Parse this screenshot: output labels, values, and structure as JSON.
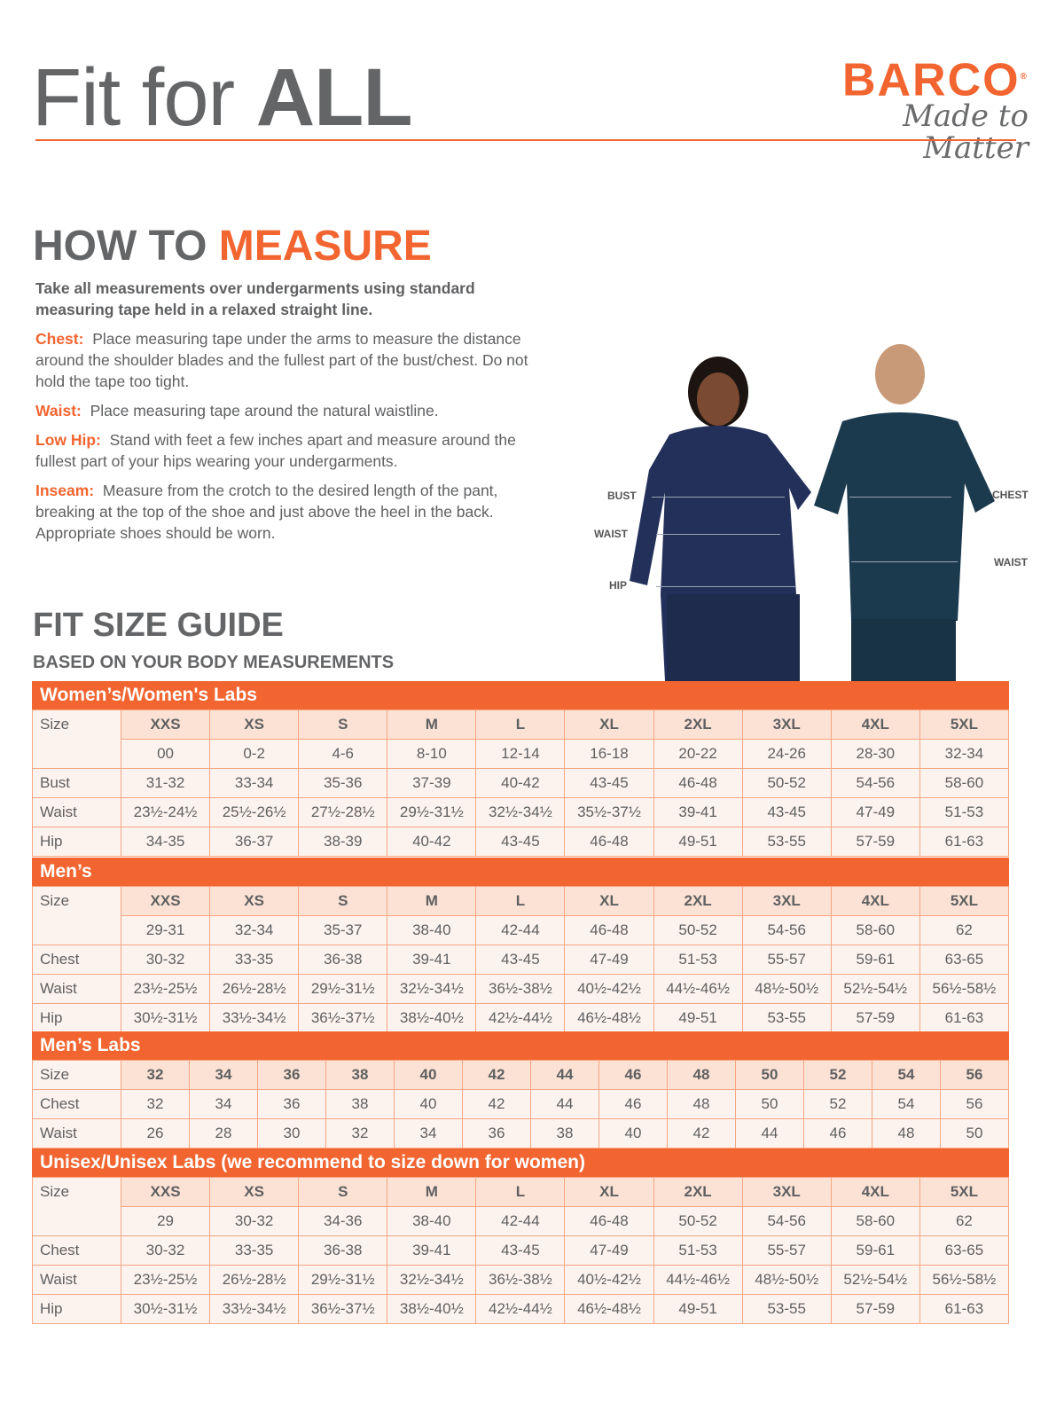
{
  "header": {
    "title_light": "Fit for ",
    "title_bold": "ALL",
    "logo_brand": "BARCO",
    "logo_registered": "®",
    "logo_tagline": "Made to Matter"
  },
  "how_to": {
    "title_gray": "HOW TO ",
    "title_orange": "MEASURE",
    "lead": "Take all measurements over undergarments using standard measuring tape held in a relaxed straight line.",
    "items": [
      {
        "key": "Chest:",
        "text": "Place measuring tape under the arms to measure the distance around the shoulder blades and the fullest part of the bust/chest. Do not hold the tape too tight."
      },
      {
        "key": "Waist:",
        "text": "Place measuring tape around the natural waistline."
      },
      {
        "key": "Low Hip:",
        "text": "Stand with feet a few inches apart and measure around the fullest part of your hips wearing your undergarments."
      },
      {
        "key": "Inseam:",
        "text": "Measure from the crotch to the desired length of the pant, breaking at the top of the shoe and just above the heel in the back. Appropriate shoes should be worn."
      }
    ]
  },
  "figure_labels": {
    "bust": "BUST",
    "waist_w": "WAIST",
    "hip": "HIP",
    "chest": "CHEST",
    "waist_m": "WAIST"
  },
  "guide": {
    "title": "FIT SIZE GUIDE",
    "subtitle": "BASED ON YOUR BODY MEASUREMENTS"
  },
  "colors": {
    "accent": "#f26530",
    "text": "#5f6062",
    "cell": "#fdf3ee",
    "size_cell": "#fce2d4",
    "navy": "#1f2b4d"
  },
  "tables": [
    {
      "title": "Women’s/Women's Labs",
      "size_label": "Size",
      "sizes": [
        "XXS",
        "XS",
        "S",
        "M",
        "L",
        "XL",
        "2XL",
        "3XL",
        "4XL",
        "5XL"
      ],
      "sub_sizes": [
        "00",
        "0-2",
        "4-6",
        "8-10",
        "12-14",
        "16-18",
        "20-22",
        "24-26",
        "28-30",
        "32-34"
      ],
      "rows": [
        {
          "label": "Bust",
          "values": [
            "31-32",
            "33-34",
            "35-36",
            "37-39",
            "40-42",
            "43-45",
            "46-48",
            "50-52",
            "54-56",
            "58-60"
          ]
        },
        {
          "label": "Waist",
          "values": [
            "23½-24½",
            "25½-26½",
            "27½-28½",
            "29½-31½",
            "32½-34½",
            "35½-37½",
            "39-41",
            "43-45",
            "47-49",
            "51-53"
          ]
        },
        {
          "label": "Hip",
          "values": [
            "34-35",
            "36-37",
            "38-39",
            "40-42",
            "43-45",
            "46-48",
            "49-51",
            "53-55",
            "57-59",
            "61-63"
          ]
        }
      ]
    },
    {
      "title": "Men’s",
      "size_label": "Size",
      "sizes": [
        "XXS",
        "XS",
        "S",
        "M",
        "L",
        "XL",
        "2XL",
        "3XL",
        "4XL",
        "5XL"
      ],
      "sub_sizes": [
        "29-31",
        "32-34",
        "35-37",
        "38-40",
        "42-44",
        "46-48",
        "50-52",
        "54-56",
        "58-60",
        "62"
      ],
      "rows": [
        {
          "label": "Chest",
          "values": [
            "30-32",
            "33-35",
            "36-38",
            "39-41",
            "43-45",
            "47-49",
            "51-53",
            "55-57",
            "59-61",
            "63-65"
          ]
        },
        {
          "label": "Waist",
          "values": [
            "23½-25½",
            "26½-28½",
            "29½-31½",
            "32½-34½",
            "36½-38½",
            "40½-42½",
            "44½-46½",
            "48½-50½",
            "52½-54½",
            "56½-58½"
          ]
        },
        {
          "label": "Hip",
          "values": [
            "30½-31½",
            "33½-34½",
            "36½-37½",
            "38½-40½",
            "42½-44½",
            "46½-48½",
            "49-51",
            "53-55",
            "57-59",
            "61-63"
          ]
        }
      ]
    },
    {
      "title": "Men’s Labs",
      "size_label": "Size",
      "sizes": [
        "32",
        "34",
        "36",
        "38",
        "40",
        "42",
        "44",
        "46",
        "48",
        "50",
        "52",
        "54",
        "56"
      ],
      "rows": [
        {
          "label": "Chest",
          "values": [
            "32",
            "34",
            "36",
            "38",
            "40",
            "42",
            "44",
            "46",
            "48",
            "50",
            "52",
            "54",
            "56"
          ]
        },
        {
          "label": "Waist",
          "values": [
            "26",
            "28",
            "30",
            "32",
            "34",
            "36",
            "38",
            "40",
            "42",
            "44",
            "46",
            "48",
            "50"
          ]
        }
      ]
    },
    {
      "title": "Unisex/Unisex Labs (we recommend to size down for women)",
      "size_label": "Size",
      "sizes": [
        "XXS",
        "XS",
        "S",
        "M",
        "L",
        "XL",
        "2XL",
        "3XL",
        "4XL",
        "5XL"
      ],
      "sub_sizes": [
        "29",
        "30-32",
        "34-36",
        "38-40",
        "42-44",
        "46-48",
        "50-52",
        "54-56",
        "58-60",
        "62"
      ],
      "rows": [
        {
          "label": "Chest",
          "values": [
            "30-32",
            "33-35",
            "36-38",
            "39-41",
            "43-45",
            "47-49",
            "51-53",
            "55-57",
            "59-61",
            "63-65"
          ]
        },
        {
          "label": "Waist",
          "values": [
            "23½-25½",
            "26½-28½",
            "29½-31½",
            "32½-34½",
            "36½-38½",
            "40½-42½",
            "44½-46½",
            "48½-50½",
            "52½-54½",
            "56½-58½"
          ]
        },
        {
          "label": "Hip",
          "values": [
            "30½-31½",
            "33½-34½",
            "36½-37½",
            "38½-40½",
            "42½-44½",
            "46½-48½",
            "49-51",
            "53-55",
            "57-59",
            "61-63"
          ]
        }
      ]
    }
  ]
}
